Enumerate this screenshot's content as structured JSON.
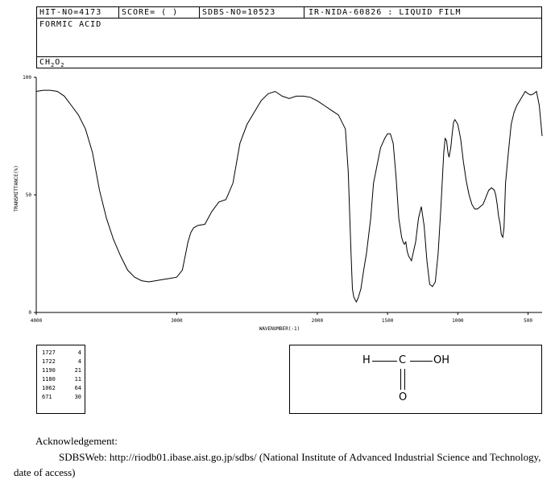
{
  "header": {
    "hit_no": "HIT-NO=4173",
    "score": "SCORE=  (  )",
    "sdbs_no": "SDBS-NO=10523",
    "method": "IR-NIDA-60826 : LIQUID FILM",
    "compound_name": "FORMIC ACID",
    "formula_parts": [
      "CH",
      "2",
      "O",
      "2"
    ]
  },
  "chart_data": {
    "type": "line",
    "xlabel": "WAVENUMBER(-1)",
    "ylabel": "TRANSMITTANCE(%)",
    "xlim": [
      4000,
      400
    ],
    "ylim": [
      0,
      100
    ],
    "x_ticks": [
      4000,
      3000,
      2000,
      1500,
      1000,
      500
    ],
    "x_tick_labels": [
      "4000",
      "3000",
      "2000",
      "1500",
      "1000",
      "500"
    ],
    "y_ticks": [
      0,
      50,
      100
    ],
    "y_tick_labels": [
      "0",
      "50",
      "100"
    ],
    "series": [
      {
        "x": [
          4000,
          3950,
          3900,
          3850,
          3800,
          3750,
          3700,
          3650,
          3600,
          3550,
          3500,
          3450,
          3400,
          3350,
          3300,
          3250,
          3200,
          3150,
          3100,
          3050,
          3000,
          2960,
          2940,
          2920,
          2900,
          2880,
          2850,
          2800,
          2750,
          2700,
          2650,
          2600,
          2550,
          2500,
          2450,
          2400,
          2350,
          2300,
          2250,
          2200,
          2150,
          2100,
          2050,
          2000,
          1950,
          1900,
          1850,
          1800,
          1780,
          1760,
          1750,
          1740,
          1727,
          1722,
          1710,
          1690,
          1670,
          1650,
          1620,
          1600,
          1570,
          1550,
          1520,
          1500,
          1480,
          1460,
          1440,
          1420,
          1400,
          1390,
          1380,
          1370,
          1360,
          1350,
          1330,
          1300,
          1280,
          1260,
          1240,
          1220,
          1200,
          1180,
          1160,
          1140,
          1120,
          1100,
          1090,
          1080,
          1070,
          1062,
          1050,
          1040,
          1030,
          1020,
          1000,
          980,
          960,
          940,
          920,
          900,
          880,
          860,
          840,
          820,
          800,
          780,
          760,
          740,
          730,
          720,
          710,
          700,
          690,
          680,
          671,
          660,
          640,
          620,
          600,
          580,
          560,
          540,
          520,
          500,
          480,
          460,
          440,
          420,
          400
        ],
        "y": [
          94,
          94.5,
          94.5,
          94,
          92,
          88,
          84,
          78,
          68,
          52,
          40,
          31,
          24,
          18,
          15,
          13.5,
          13,
          13.5,
          14,
          14.5,
          15,
          18,
          24,
          30,
          34,
          36,
          37,
          37.5,
          43,
          47,
          48,
          55,
          72,
          80,
          85,
          90,
          93,
          94,
          92,
          91,
          92,
          92,
          91.5,
          90,
          88,
          86,
          84,
          78,
          60,
          25,
          10,
          6.5,
          5,
          4.5,
          6,
          10,
          18,
          25,
          40,
          55,
          64,
          70,
          74,
          76,
          76,
          72,
          58,
          40,
          32,
          30,
          29,
          30,
          26,
          24,
          22,
          30,
          40,
          45,
          37,
          22,
          12,
          11,
          13,
          25,
          45,
          68,
          74,
          73,
          68,
          66,
          70,
          76,
          81,
          82,
          80,
          74,
          64,
          56,
          50,
          46,
          44,
          44,
          45,
          46,
          49,
          52,
          53,
          52,
          50,
          46,
          41,
          38,
          33,
          32,
          36,
          55,
          68,
          80,
          85,
          88,
          90,
          92,
          94,
          93,
          92.5,
          93,
          94,
          88,
          75
        ]
      }
    ]
  },
  "peak_table": [
    [
      "1727",
      "4"
    ],
    [
      "1722",
      "4"
    ],
    [
      "1190",
      "21"
    ],
    [
      "1180",
      "11"
    ],
    [
      "1062",
      "64"
    ],
    [
      "671",
      "30"
    ]
  ],
  "structure": {
    "h": "H",
    "c": "C",
    "oh": "OH",
    "o": "O"
  },
  "acknowledgement": {
    "title": "Acknowledgement:",
    "text": "SDBSWeb: http://riodb01.ibase.aist.go.jp/sdbs/ (National Institute of Advanced Industrial Science and Technology, date of access)"
  }
}
